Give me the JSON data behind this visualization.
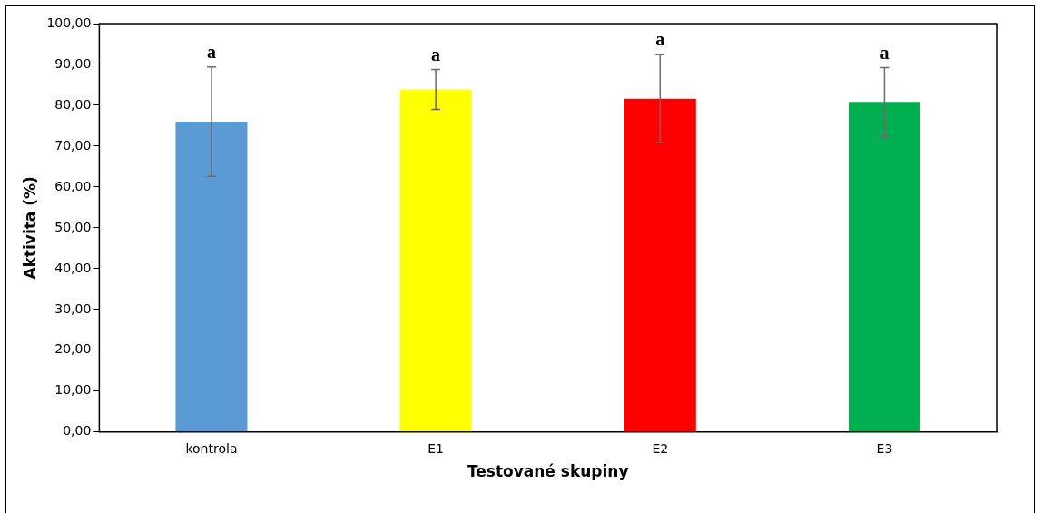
{
  "chart_data": {
    "type": "bar",
    "xlabel": "Testované skupiny",
    "ylabel": "Aktivita (%)",
    "categories": [
      "kontrola",
      "E1",
      "E2",
      "E3"
    ],
    "values": [
      76.0,
      83.9,
      81.6,
      80.8
    ],
    "colors": [
      "#5b9bd5",
      "#ffff00",
      "#ff0000",
      "#00b050"
    ],
    "errors": [
      13.4,
      4.9,
      10.8,
      8.4
    ],
    "ylim": [
      0,
      100
    ],
    "yticks": [
      {
        "value": 0,
        "label": "0,00"
      },
      {
        "value": 10,
        "label": "10,00"
      },
      {
        "value": 20,
        "label": "20,00"
      },
      {
        "value": 30,
        "label": "30,00"
      },
      {
        "value": 40,
        "label": "40,00"
      },
      {
        "value": 50,
        "label": "50,00"
      },
      {
        "value": 60,
        "label": "60,00"
      },
      {
        "value": 70,
        "label": "70,00"
      },
      {
        "value": 80,
        "label": "80,00"
      },
      {
        "value": 90,
        "label": "90,00"
      },
      {
        "value": 100,
        "label": "100,00"
      }
    ],
    "annotations": [
      "a",
      "a",
      "a",
      "a"
    ],
    "grid": false,
    "legend": false
  }
}
